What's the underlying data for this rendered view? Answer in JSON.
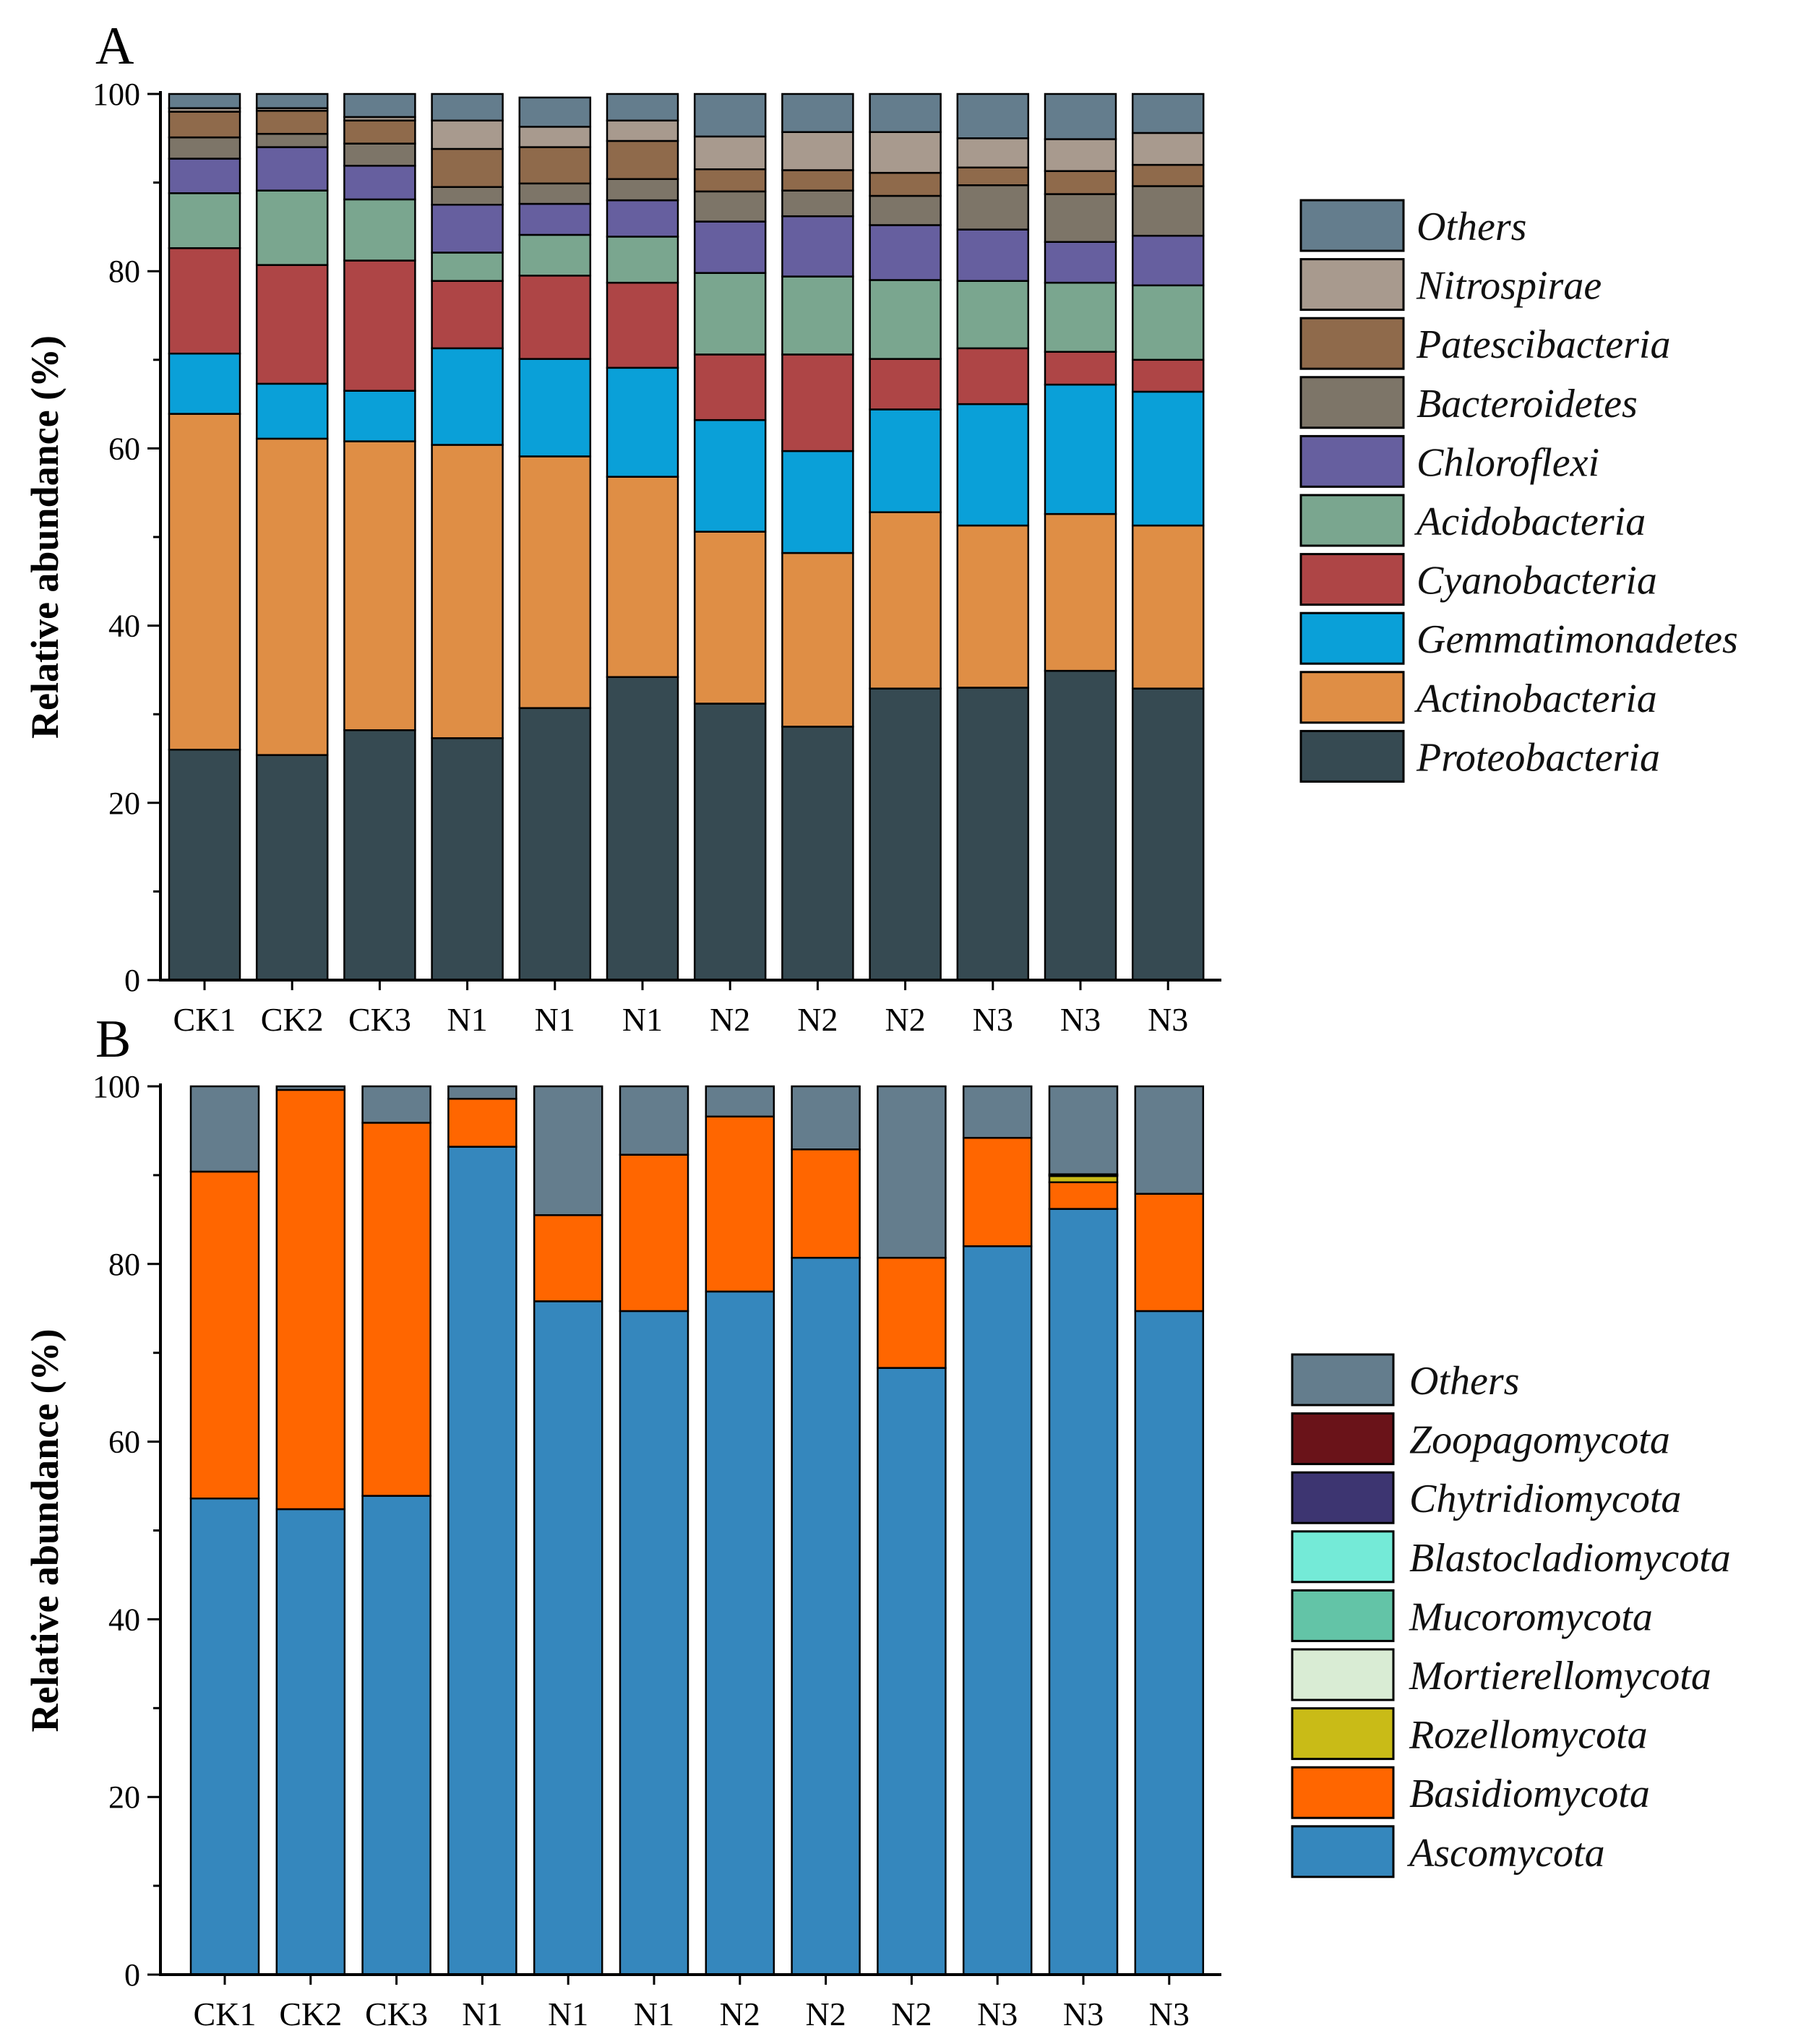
{
  "chart_data": [
    {
      "panel": "A",
      "type": "bar",
      "stacked": true,
      "ylabel": "Relative abundance (%)",
      "xlabel": "",
      "ylim": [
        0,
        100
      ],
      "yticks": [
        0,
        20,
        40,
        60,
        80,
        100
      ],
      "categories": [
        "CK1",
        "CK2",
        "CK3",
        "N1",
        "N1",
        "N1",
        "N2",
        "N2",
        "N2",
        "N3",
        "N3",
        "N3"
      ],
      "legend_position": "right",
      "series": [
        {
          "name": "Proteobacteria",
          "color": "#364a52",
          "values": [
            26.0,
            25.4,
            28.2,
            27.3,
            30.7,
            34.2,
            31.2,
            28.6,
            32.9,
            33.0,
            34.9,
            32.9
          ]
        },
        {
          "name": "Actinobacteria",
          "color": "#df8e45",
          "values": [
            37.9,
            35.7,
            32.6,
            33.1,
            28.4,
            22.6,
            19.4,
            19.6,
            19.9,
            18.3,
            17.7,
            18.4
          ]
        },
        {
          "name": "Gemmatimonadetes",
          "color": "#0aa0d8",
          "values": [
            6.8,
            6.2,
            5.7,
            10.9,
            11.0,
            12.3,
            12.6,
            11.5,
            11.6,
            13.7,
            14.6,
            15.1
          ]
        },
        {
          "name": "Cyanobacteria",
          "color": "#ae4546",
          "values": [
            11.9,
            13.4,
            14.7,
            7.6,
            9.4,
            9.6,
            7.4,
            10.9,
            5.7,
            6.3,
            3.7,
            3.6
          ]
        },
        {
          "name": "Acidobacteria",
          "color": "#7aa68f",
          "values": [
            6.2,
            8.4,
            6.9,
            3.2,
            4.6,
            5.2,
            9.2,
            8.8,
            8.9,
            7.6,
            7.8,
            8.4
          ]
        },
        {
          "name": "Chloroflexi",
          "color": "#665f9f",
          "values": [
            3.9,
            4.9,
            3.8,
            5.4,
            3.5,
            4.1,
            5.8,
            6.8,
            6.2,
            5.8,
            4.6,
            5.6
          ]
        },
        {
          "name": "Bacteroidetes",
          "color": "#7d7568",
          "values": [
            2.4,
            1.5,
            2.5,
            2.0,
            2.3,
            2.4,
            3.4,
            2.9,
            3.3,
            5.0,
            5.4,
            5.6
          ]
        },
        {
          "name": "Patescibacteria",
          "color": "#8f6a4b",
          "values": [
            2.9,
            2.6,
            2.6,
            4.3,
            4.1,
            4.3,
            2.5,
            2.3,
            2.6,
            2.0,
            2.6,
            2.4
          ]
        },
        {
          "name": "Nitrospirae",
          "color": "#a89a8e",
          "values": [
            0.4,
            0.3,
            0.4,
            3.2,
            2.3,
            2.3,
            3.7,
            4.3,
            4.6,
            3.3,
            3.6,
            3.6
          ]
        },
        {
          "name": "Others",
          "color": "#647d8d",
          "values": [
            1.6,
            1.6,
            2.6,
            3.0,
            3.3,
            3.0,
            4.8,
            4.3,
            4.3,
            5.0,
            5.1,
            4.4
          ]
        }
      ]
    },
    {
      "panel": "B",
      "type": "bar",
      "stacked": true,
      "ylabel": "Relative abundance (%)",
      "xlabel": "",
      "ylim": [
        0,
        100
      ],
      "yticks": [
        0,
        20,
        40,
        60,
        80,
        100
      ],
      "categories": [
        "CK1",
        "CK2",
        "CK3",
        "N1",
        "N1",
        "N1",
        "N2",
        "N2",
        "N2",
        "N3",
        "N3",
        "N3"
      ],
      "legend_position": "right",
      "series": [
        {
          "name": "Ascomycota",
          "color": "#3587bd",
          "values": [
            53.6,
            52.4,
            53.9,
            93.2,
            75.8,
            74.7,
            76.9,
            80.7,
            68.3,
            82.0,
            86.2,
            74.7
          ]
        },
        {
          "name": "Basidiomycota",
          "color": "#ff6600",
          "values": [
            36.8,
            47.2,
            42.0,
            5.4,
            9.7,
            17.6,
            19.7,
            12.2,
            12.4,
            12.2,
            3.0,
            13.2
          ]
        },
        {
          "name": "Rozellomycota",
          "color": "#c9bb17",
          "values": [
            0.0,
            0.0,
            0.0,
            0.0,
            0.0,
            0.0,
            0.0,
            0.0,
            0.0,
            0.0,
            0.7,
            0.0
          ]
        },
        {
          "name": "Mortierellomycota",
          "color": "#d9ecd4",
          "values": [
            0.0,
            0.0,
            0.0,
            0.0,
            0.0,
            0.0,
            0.0,
            0.0,
            0.0,
            0.0,
            0.1,
            0.0
          ]
        },
        {
          "name": "Mucoromycota",
          "color": "#63c4a7",
          "values": [
            0.0,
            0.0,
            0.0,
            0.0,
            0.0,
            0.0,
            0.0,
            0.0,
            0.0,
            0.0,
            0.1,
            0.0
          ]
        },
        {
          "name": "Blastocladiomycota",
          "color": "#74ead7",
          "values": [
            0.0,
            0.0,
            0.0,
            0.0,
            0.0,
            0.0,
            0.0,
            0.0,
            0.0,
            0.0,
            0.0,
            0.0
          ]
        },
        {
          "name": "Chytridiomycota",
          "color": "#3d3571",
          "values": [
            0.0,
            0.0,
            0.0,
            0.0,
            0.0,
            0.0,
            0.0,
            0.0,
            0.0,
            0.0,
            0.0,
            0.0
          ]
        },
        {
          "name": "Zoopagomycota",
          "color": "#6a1319",
          "values": [
            0.0,
            0.0,
            0.0,
            0.0,
            0.0,
            0.0,
            0.0,
            0.0,
            0.0,
            0.0,
            0.0,
            0.0
          ]
        },
        {
          "name": "Others",
          "color": "#647d8d",
          "values": [
            9.6,
            0.4,
            4.1,
            1.4,
            14.5,
            7.7,
            3.4,
            7.1,
            19.3,
            5.8,
            9.9,
            12.1
          ]
        }
      ]
    }
  ]
}
